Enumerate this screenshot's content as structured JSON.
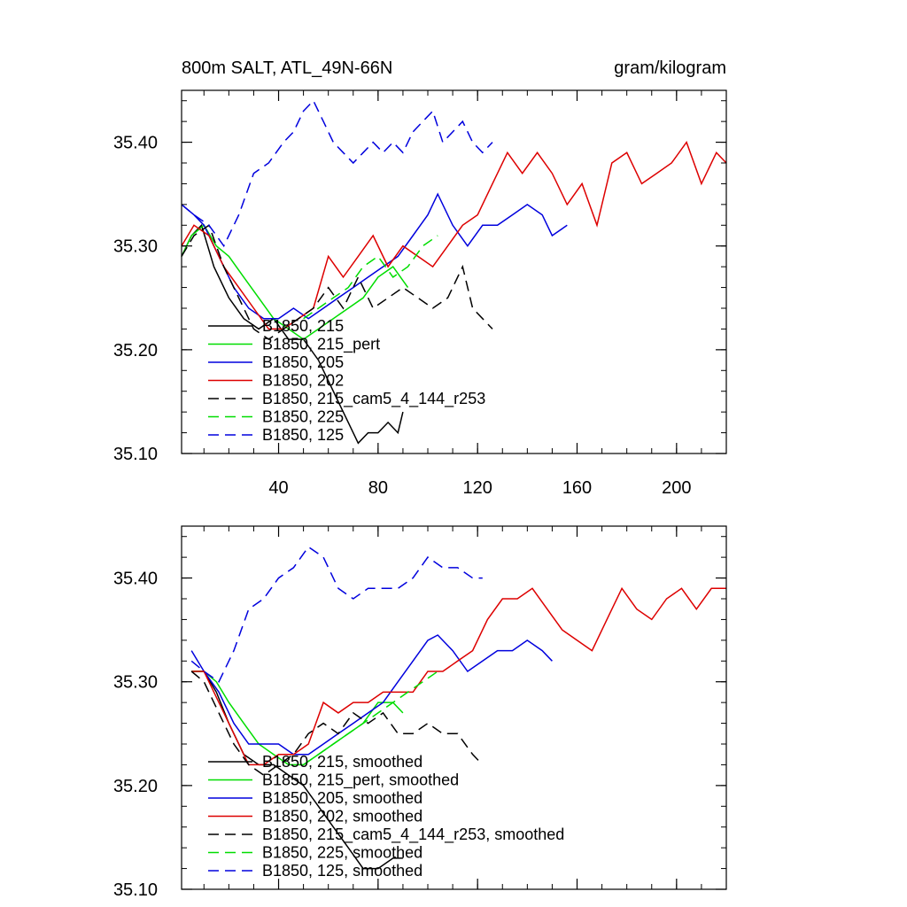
{
  "page": {
    "title_left": "800m SALT, ATL_49N-66N",
    "title_right": "gram/kilogram"
  },
  "chart_data": [
    {
      "type": "line",
      "title": "800m SALT, ATL_49N-66N",
      "units": "gram/kilogram",
      "xlim": [
        1,
        220
      ],
      "ylim": [
        35.1,
        35.45
      ],
      "x_ticks": [
        40,
        80,
        120,
        160,
        200
      ],
      "y_ticks": [
        35.1,
        35.2,
        35.3,
        35.4
      ],
      "y_tick_labels": [
        "35.10",
        "35.20",
        "35.30",
        "35.40"
      ],
      "grid": false,
      "legend_position": "bottom-left",
      "series": [
        {
          "name": "B1850, 215",
          "color": "#000000",
          "dash": "solid",
          "x": [
            1,
            5,
            9,
            14,
            20,
            26,
            32,
            38,
            44,
            50,
            56,
            60,
            64,
            68,
            72,
            76,
            80,
            84,
            88,
            90
          ],
          "y": [
            35.29,
            35.31,
            35.32,
            35.28,
            35.25,
            35.23,
            35.22,
            35.23,
            35.21,
            35.21,
            35.19,
            35.17,
            35.15,
            35.13,
            35.11,
            35.12,
            35.12,
            35.13,
            35.12,
            35.14
          ]
        },
        {
          "name": "B1850, 215_pert",
          "color": "#00dd00",
          "dash": "solid",
          "x": [
            1,
            5,
            10,
            15,
            20,
            26,
            32,
            38,
            44,
            50,
            56,
            62,
            68,
            74,
            80,
            86,
            92
          ],
          "y": [
            35.29,
            35.31,
            35.32,
            35.3,
            35.29,
            35.27,
            35.25,
            35.23,
            35.22,
            35.21,
            35.22,
            35.23,
            35.24,
            35.25,
            35.27,
            35.28,
            35.26
          ]
        },
        {
          "name": "B1850, 205",
          "color": "#0000dd",
          "dash": "solid",
          "x": [
            1,
            6,
            10,
            16,
            22,
            28,
            34,
            40,
            46,
            52,
            58,
            64,
            70,
            76,
            82,
            88,
            94,
            100,
            104,
            110,
            116,
            122,
            128,
            134,
            140,
            146,
            150,
            156
          ],
          "y": [
            35.34,
            35.33,
            35.32,
            35.29,
            35.26,
            35.24,
            35.23,
            35.23,
            35.24,
            35.23,
            35.24,
            35.25,
            35.26,
            35.27,
            35.28,
            35.29,
            35.31,
            35.33,
            35.35,
            35.32,
            35.3,
            35.32,
            35.32,
            35.33,
            35.34,
            35.33,
            35.31,
            35.32
          ]
        },
        {
          "name": "B1850, 202",
          "color": "#dd0000",
          "dash": "solid",
          "x": [
            1,
            6,
            12,
            18,
            24,
            30,
            36,
            42,
            48,
            54,
            60,
            66,
            72,
            78,
            84,
            90,
            96,
            102,
            108,
            114,
            120,
            126,
            132,
            138,
            144,
            150,
            156,
            162,
            168,
            174,
            180,
            186,
            192,
            198,
            204,
            210,
            216,
            220
          ],
          "y": [
            35.3,
            35.32,
            35.31,
            35.28,
            35.26,
            35.24,
            35.22,
            35.22,
            35.23,
            35.24,
            35.29,
            35.27,
            35.29,
            35.31,
            35.28,
            35.3,
            35.29,
            35.28,
            35.3,
            35.32,
            35.33,
            35.36,
            35.39,
            35.37,
            35.39,
            35.37,
            35.34,
            35.36,
            35.32,
            35.38,
            35.39,
            35.36,
            35.37,
            35.38,
            35.4,
            35.36,
            35.39,
            35.38
          ]
        },
        {
          "name": "B1850, 215_cam5_4_144_r253",
          "color": "#000000",
          "dash": "dashed",
          "x": [
            1,
            6,
            12,
            18,
            24,
            30,
            36,
            42,
            48,
            54,
            60,
            66,
            72,
            78,
            84,
            90,
            96,
            102,
            108,
            114,
            118,
            122,
            126
          ],
          "y": [
            35.29,
            35.31,
            35.32,
            35.28,
            35.25,
            35.22,
            35.21,
            35.22,
            35.23,
            35.24,
            35.26,
            35.24,
            35.27,
            35.24,
            35.25,
            35.26,
            35.25,
            35.24,
            35.25,
            35.28,
            35.24,
            35.23,
            35.22
          ]
        },
        {
          "name": "B1850, 225",
          "color": "#00dd00",
          "dash": "dashed",
          "x": [
            50,
            56,
            62,
            68,
            74,
            80,
            86,
            92,
            98,
            104
          ],
          "y": [
            35.23,
            35.24,
            35.25,
            35.26,
            35.28,
            35.29,
            35.27,
            35.28,
            35.3,
            35.31
          ]
        },
        {
          "name": "B1850, 125",
          "color": "#0000dd",
          "dash": "dashed",
          "x": [
            1,
            6,
            12,
            18,
            24,
            30,
            36,
            42,
            46,
            50,
            54,
            58,
            62,
            66,
            70,
            74,
            78,
            82,
            86,
            90,
            94,
            98,
            102,
            106,
            110,
            114,
            118,
            122,
            126
          ],
          "y": [
            35.34,
            35.33,
            35.32,
            35.3,
            35.33,
            35.37,
            35.38,
            35.4,
            35.41,
            35.43,
            35.44,
            35.42,
            35.4,
            35.39,
            35.38,
            35.39,
            35.4,
            35.39,
            35.4,
            35.39,
            35.41,
            35.42,
            35.43,
            35.4,
            35.41,
            35.42,
            35.4,
            35.39,
            35.4
          ]
        }
      ]
    },
    {
      "type": "line",
      "title": "",
      "xlim": [
        1,
        220
      ],
      "ylim": [
        35.1,
        35.45
      ],
      "x_ticks": [
        40,
        80,
        120,
        160,
        200
      ],
      "y_ticks": [
        35.1,
        35.2,
        35.3,
        35.4
      ],
      "y_tick_labels": [
        "35.10",
        "35.20",
        "35.30",
        "35.40"
      ],
      "grid": false,
      "legend_position": "bottom-left",
      "series": [
        {
          "name": "B1850, 215, smoothed",
          "color": "#000000",
          "dash": "solid",
          "x": [
            5,
            10,
            15,
            20,
            26,
            32,
            38,
            44,
            50,
            56,
            62,
            68,
            74,
            80,
            86,
            90
          ],
          "y": [
            35.31,
            35.31,
            35.29,
            35.26,
            35.23,
            35.22,
            35.22,
            35.21,
            35.2,
            35.18,
            35.16,
            35.14,
            35.12,
            35.12,
            35.13,
            35.13
          ]
        },
        {
          "name": "B1850, 215_pert, smoothed",
          "color": "#00dd00",
          "dash": "solid",
          "x": [
            5,
            10,
            15,
            20,
            26,
            32,
            38,
            44,
            50,
            56,
            62,
            68,
            74,
            80,
            86,
            90
          ],
          "y": [
            35.31,
            35.31,
            35.3,
            35.28,
            35.26,
            35.24,
            35.23,
            35.22,
            35.22,
            35.23,
            35.24,
            35.25,
            35.26,
            35.28,
            35.28,
            35.27
          ]
        },
        {
          "name": "B1850, 205, smoothed",
          "color": "#0000dd",
          "dash": "solid",
          "x": [
            5,
            10,
            16,
            22,
            28,
            34,
            40,
            46,
            52,
            58,
            64,
            70,
            76,
            82,
            88,
            94,
            100,
            104,
            110,
            116,
            122,
            128,
            134,
            140,
            146,
            150
          ],
          "y": [
            35.33,
            35.31,
            35.29,
            35.26,
            35.24,
            35.24,
            35.24,
            35.23,
            35.23,
            35.24,
            35.25,
            35.26,
            35.27,
            35.28,
            35.3,
            35.32,
            35.34,
            35.345,
            35.33,
            35.31,
            35.32,
            35.33,
            35.33,
            35.34,
            35.33,
            35.32
          ]
        },
        {
          "name": "B1850, 202, smoothed",
          "color": "#dd0000",
          "dash": "solid",
          "x": [
            5,
            10,
            16,
            22,
            28,
            34,
            40,
            46,
            52,
            58,
            64,
            70,
            76,
            82,
            88,
            94,
            100,
            106,
            112,
            118,
            124,
            130,
            136,
            142,
            148,
            154,
            160,
            166,
            172,
            178,
            184,
            190,
            196,
            202,
            208,
            214,
            220
          ],
          "y": [
            35.31,
            35.31,
            35.28,
            35.25,
            35.22,
            35.22,
            35.23,
            35.23,
            35.24,
            35.28,
            35.27,
            35.28,
            35.28,
            35.29,
            35.29,
            35.29,
            35.31,
            35.31,
            35.32,
            35.33,
            35.36,
            35.38,
            35.38,
            35.39,
            35.37,
            35.35,
            35.34,
            35.33,
            35.36,
            35.39,
            35.37,
            35.36,
            35.38,
            35.39,
            35.37,
            35.39,
            35.39
          ]
        },
        {
          "name": "B1850, 215_cam5_4_144_r253, smoothed",
          "color": "#000000",
          "dash": "dashed",
          "x": [
            5,
            10,
            16,
            22,
            28,
            34,
            40,
            46,
            52,
            58,
            64,
            70,
            76,
            82,
            88,
            94,
            100,
            106,
            112,
            118,
            122
          ],
          "y": [
            35.31,
            35.3,
            35.27,
            35.24,
            35.22,
            35.21,
            35.22,
            35.23,
            35.25,
            35.26,
            35.25,
            35.27,
            35.26,
            35.27,
            35.25,
            35.25,
            35.26,
            35.25,
            35.25,
            35.23,
            35.22
          ]
        },
        {
          "name": "B1850, 225, smoothed",
          "color": "#00dd00",
          "dash": "dashed",
          "x": [
            50,
            56,
            62,
            68,
            74,
            80,
            86,
            92,
            98,
            104
          ],
          "y": [
            35.22,
            35.23,
            35.24,
            35.25,
            35.26,
            35.27,
            35.28,
            35.29,
            35.3,
            35.31
          ]
        },
        {
          "name": "B1850, 125, smoothed",
          "color": "#0000dd",
          "dash": "dashed",
          "x": [
            5,
            10,
            16,
            22,
            28,
            34,
            40,
            46,
            52,
            58,
            64,
            70,
            76,
            82,
            88,
            94,
            100,
            106,
            112,
            118,
            122
          ],
          "y": [
            35.32,
            35.31,
            35.3,
            35.33,
            35.37,
            35.38,
            35.4,
            35.41,
            35.43,
            35.42,
            35.39,
            35.38,
            35.39,
            35.39,
            35.39,
            35.4,
            35.42,
            35.41,
            35.41,
            35.4,
            35.4
          ]
        }
      ]
    }
  ]
}
